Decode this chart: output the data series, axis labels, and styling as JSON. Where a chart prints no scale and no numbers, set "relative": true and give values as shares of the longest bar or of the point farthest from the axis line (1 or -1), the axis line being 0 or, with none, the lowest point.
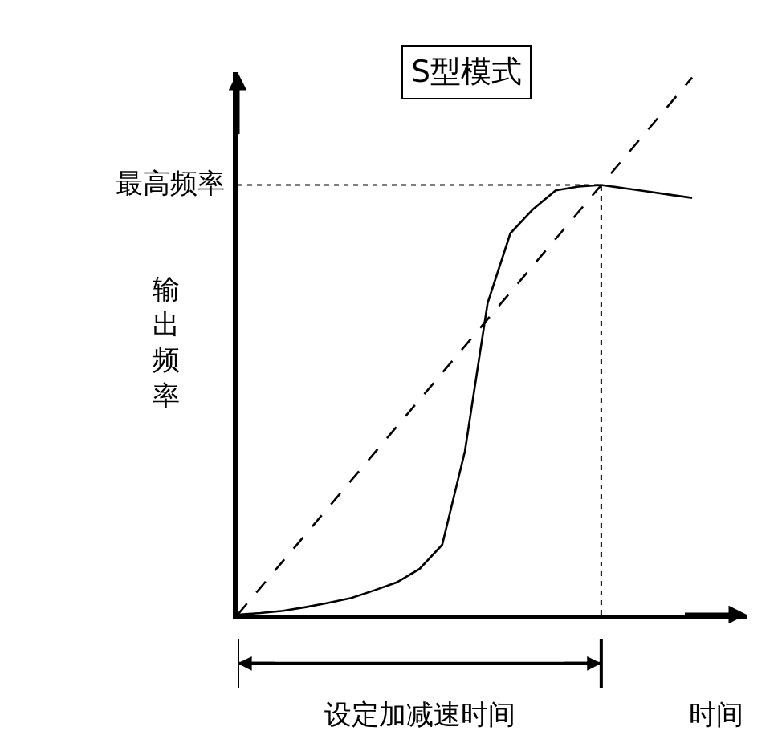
{
  "chart_data": {
    "type": "line",
    "relative": true,
    "title": "S型模式",
    "ylabel": "输出频率",
    "xlabel": "时间",
    "categories": [
      null,
      null,
      null,
      null,
      null,
      null,
      null,
      null,
      null,
      null,
      null,
      null,
      null,
      null,
      null,
      null,
      null,
      null,
      null,
      null,
      null
    ],
    "series": [
      {
        "line_style": "dashed",
        "color": "#000000",
        "values": [
          0,
          0.05,
          0.1,
          0.15,
          0.2,
          0.25,
          0.3,
          0.35,
          0.4,
          0.45,
          0.5,
          0.55,
          0.6,
          0.65,
          0.7,
          0.75,
          0.8,
          0.85,
          0.9,
          0.95,
          1.0
        ]
      },
      {
        "line_style": "solid",
        "color": "#000000",
        "values": [
          0,
          0.003,
          0.007,
          0.014,
          0.022,
          0.031,
          0.045,
          0.06,
          0.085,
          0.13,
          0.304,
          0.58,
          0.71,
          0.755,
          0.79,
          0.797,
          0.8,
          0.794,
          0.788,
          0.782,
          0.776
        ]
      }
    ],
    "ref_lines": [
      {
        "axis": "y",
        "value": 0.8,
        "label": "最高频率",
        "line_style": "dotted"
      },
      {
        "axis": "x",
        "line_style": "dotted"
      }
    ],
    "annotations": [
      "设定加减速时间"
    ],
    "marker": "none"
  }
}
